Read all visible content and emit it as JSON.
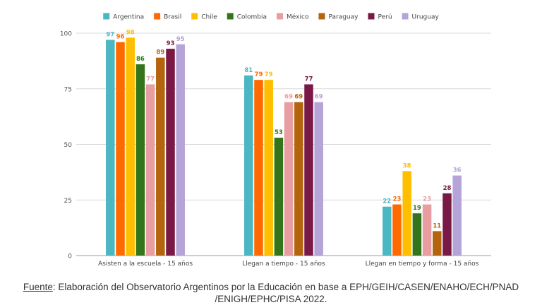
{
  "chart_data": {
    "type": "bar",
    "categories": [
      "Asisten a la escuela - 15 años",
      "Llegan a tiempo - 15 años",
      "Llegan en tiempo y forma - 15 años"
    ],
    "series": [
      {
        "name": "Argentina",
        "color": "#4ab7c3",
        "values": [
          97,
          81,
          22
        ]
      },
      {
        "name": "Brasil",
        "color": "#ff6a00",
        "values": [
          96,
          79,
          23
        ]
      },
      {
        "name": "Chile",
        "color": "#ffbf00",
        "values": [
          98,
          79,
          38
        ]
      },
      {
        "name": "Colombia",
        "color": "#34751b",
        "values": [
          86,
          53,
          19
        ]
      },
      {
        "name": "México",
        "color": "#e89ea0",
        "values": [
          77,
          69,
          23
        ]
      },
      {
        "name": "Paraguay",
        "color": "#b3640c",
        "values": [
          89,
          69,
          11
        ]
      },
      {
        "name": "Perú",
        "color": "#7a1846",
        "values": [
          93,
          77,
          28
        ]
      },
      {
        "name": "Uruguay",
        "color": "#b5a4d8",
        "values": [
          95,
          69,
          36
        ]
      }
    ],
    "yticks": [
      0,
      25,
      50,
      75,
      100
    ],
    "ylim": [
      0,
      100
    ],
    "title": "",
    "xlabel": "",
    "ylabel": "",
    "grid": true,
    "legend_position": "top-center",
    "data_labels": true
  },
  "source": {
    "label": "Fuente",
    "text": ": Elaboración del Observatorio Argentinos por la Educación en base a EPH/GEIH/CASEN/ENAHO/ECH/PNAD /ENIGH/EPHC/PISA 2022."
  }
}
